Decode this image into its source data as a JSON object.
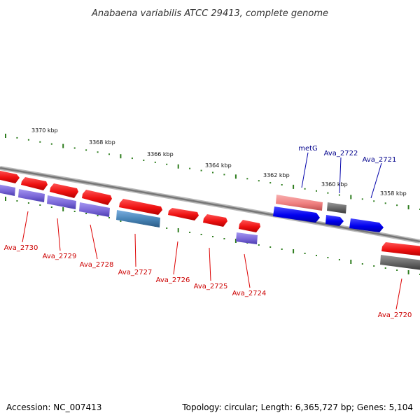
{
  "title": "Anabaena variabilis ATCC 29413, complete genome",
  "footer": {
    "accession": "Accession: NC_007413",
    "summary": "Topology: circular; Length: 6,365,727 bp; Genes: 5,104"
  },
  "ticks": [
    {
      "label": "3370 kbp"
    },
    {
      "label": "3368 kbp"
    },
    {
      "label": "3366 kbp"
    },
    {
      "label": "3364 kbp"
    },
    {
      "label": "3362 kbp"
    },
    {
      "label": "3360 kbp"
    },
    {
      "label": "3358 kbp"
    }
  ],
  "genes": [
    {
      "label": "metG",
      "strand": "forward",
      "color": "#f08080"
    },
    {
      "label": "Ava_2722",
      "strand": "forward",
      "color": "#666666"
    },
    {
      "label": "Ava_2721",
      "strand": "forward",
      "color": "#0000ee"
    },
    {
      "label": "Ava_2730",
      "strand": "reverse",
      "color": "#ee1111"
    },
    {
      "label": "Ava_2729",
      "strand": "reverse",
      "color": "#ee1111"
    },
    {
      "label": "Ava_2728",
      "strand": "reverse",
      "color": "#ee1111"
    },
    {
      "label": "Ava_2727",
      "strand": "reverse",
      "color": "#ee1111"
    },
    {
      "label": "Ava_2726",
      "strand": "reverse",
      "color": "#ee1111"
    },
    {
      "label": "Ava_2725",
      "strand": "reverse",
      "color": "#ee1111"
    },
    {
      "label": "Ava_2724",
      "strand": "reverse",
      "color": "#ee1111"
    },
    {
      "label": "Ava_2720",
      "strand": "reverse",
      "color": "#ee1111"
    }
  ],
  "colors": {
    "backbone": "#888888",
    "tick": "#2e7d1e",
    "forward_label": "#00008b",
    "reverse_label": "#cc0000",
    "red_gene": "#ee1111",
    "purple_gene": "#7b68d8",
    "blue_gene": "#0000ee",
    "steel_gene": "#4682b4",
    "pink_gene": "#f08080",
    "gray_gene": "#666666"
  }
}
